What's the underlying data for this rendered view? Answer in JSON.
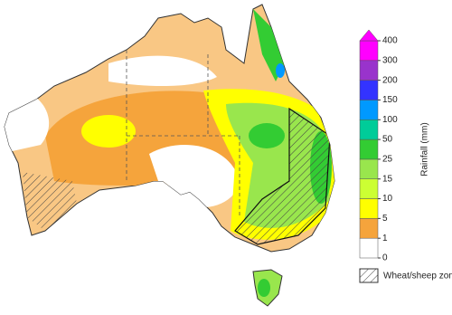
{
  "legend": {
    "title": "Rainfall (mm)",
    "ticks": [
      0,
      1,
      5,
      10,
      15,
      25,
      50,
      100,
      150,
      200,
      300,
      400
    ],
    "colors": [
      "#ffffff",
      "#f5a43c",
      "#ffff00",
      "#ccff33",
      "#99e64d",
      "#33cc33",
      "#00cc99",
      "#0099ff",
      "#3333ff",
      "#9933cc",
      "#ff00ff"
    ]
  },
  "zone_label": "Wheat/sheep zone"
}
